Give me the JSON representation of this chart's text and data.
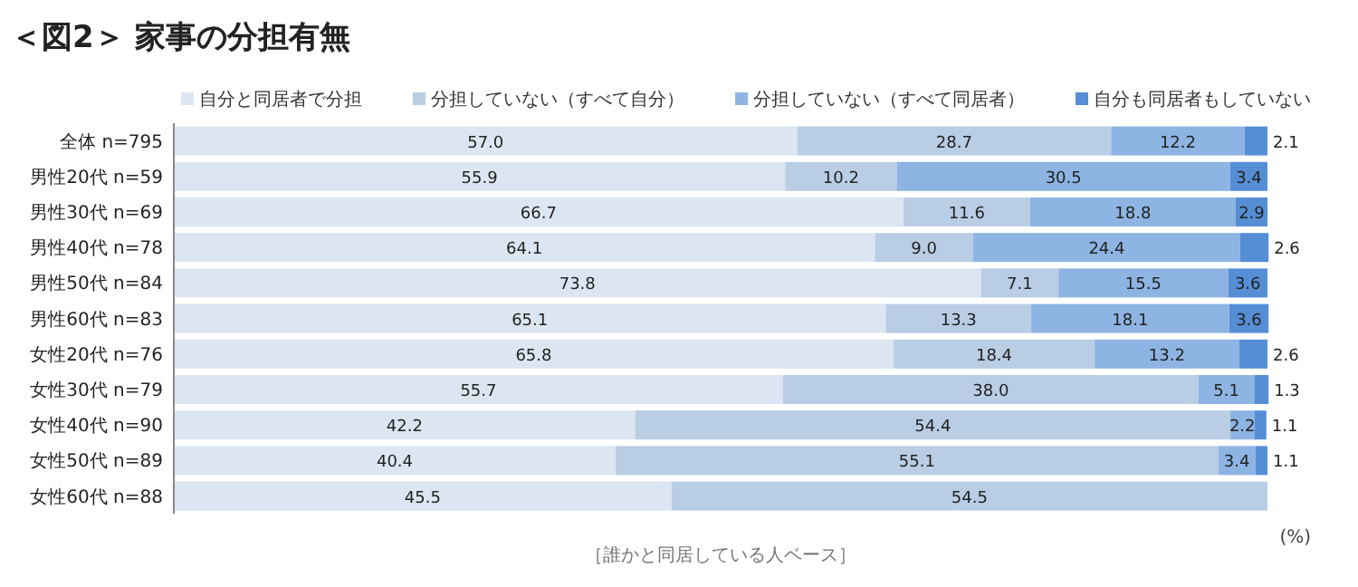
{
  "chart_data": {
    "type": "bar",
    "orientation": "horizontal",
    "stacked": true,
    "title": "＜図2＞ 家事の分担有無",
    "legend": "top",
    "tick_labels": "y",
    "xlim": [
      0,
      100
    ],
    "categories": [
      "全体 n=795",
      "男性20代 n=59",
      "男性30代 n=69",
      "男性40代 n=78",
      "男性50代 n=84",
      "男性60代 n=83",
      "女性20代 n=76",
      "女性30代 n=79",
      "女性40代 n=90",
      "女性50代 n=89",
      "女性60代 n=88"
    ],
    "series": [
      {
        "name": "自分と同居者で分担",
        "color": "#dce6f2",
        "values": [
          57.0,
          55.9,
          66.7,
          64.1,
          73.8,
          65.1,
          65.8,
          55.7,
          42.2,
          40.4,
          45.5
        ],
        "value_labels": [
          "57.0",
          "55.9",
          "66.7",
          "64.1",
          "73.8",
          "65.1",
          "65.8",
          "55.7",
          "42.2",
          "40.4",
          "45.5"
        ]
      },
      {
        "name": "分担していない（すべて自分）",
        "color": "#b9cde5",
        "values": [
          28.7,
          10.2,
          11.6,
          9.0,
          7.1,
          13.3,
          18.4,
          38.0,
          54.4,
          55.1,
          54.5
        ],
        "value_labels": [
          "28.7",
          "10.2",
          "11.6",
          "9.0",
          "7.1",
          "13.3",
          "18.4",
          "38.0",
          "54.4",
          "55.1",
          "54.5"
        ]
      },
      {
        "name": "分担していない（すべて同居者）",
        "color": "#8eb4e3",
        "values": [
          12.2,
          30.5,
          18.8,
          24.4,
          15.5,
          18.1,
          13.2,
          5.1,
          2.2,
          3.4,
          0
        ],
        "value_labels": [
          "12.2",
          "30.5",
          "18.8",
          "24.4",
          "15.5",
          "18.1",
          "13.2",
          "5.1",
          "2.2",
          "3.4",
          null
        ]
      },
      {
        "name": "自分も同居者もしていない",
        "color": "#558ed5",
        "values": [
          2.1,
          3.4,
          2.9,
          2.6,
          3.6,
          3.6,
          2.6,
          1.3,
          1.1,
          1.1,
          0
        ],
        "value_labels": [
          "2.1",
          "3.4",
          "2.9",
          "2.6",
          "3.6",
          "3.6",
          "2.6",
          "1.3",
          "1.1",
          "1.1",
          null
        ]
      }
    ],
    "annotations": [
      "［誰かと同居している人ベース］",
      "(%)"
    ]
  }
}
